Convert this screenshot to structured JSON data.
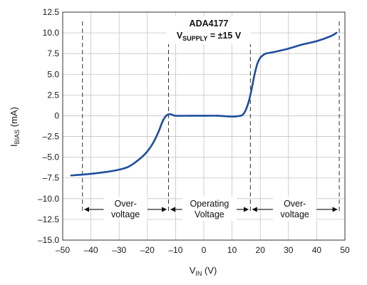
{
  "chart_data": {
    "type": "line",
    "annotation": {
      "part": "ADA4177",
      "supply_prefix": "V",
      "supply_sub": "SUPPLY",
      "supply_suffix": " = ±15 V"
    },
    "xlabel": {
      "main": "V",
      "sub": "IN",
      "suffix": " (V)"
    },
    "ylabel": {
      "main": "I",
      "sub": "BIAS",
      "suffix": " (mA)"
    },
    "xlim": [
      -50,
      50
    ],
    "ylim": [
      -15,
      12.5
    ],
    "x_ticks": [
      -50,
      -40,
      -30,
      -20,
      -10,
      0,
      10,
      20,
      30,
      40,
      50
    ],
    "y_ticks": [
      -15.0,
      -12.5,
      -10.0,
      -7.5,
      -5.0,
      -2.5,
      0,
      2.5,
      5.0,
      7.5,
      10.0,
      12.5
    ],
    "x_tick_labels": [
      "–50",
      "–40",
      "–30",
      "–20",
      "–10",
      "0",
      "10",
      "20",
      "30",
      "40",
      "50"
    ],
    "y_tick_labels": [
      "–15.0",
      "–12.5",
      "–10.0",
      "–7.5",
      "–5.0",
      "–2.5",
      "0",
      "2.5",
      "5.0",
      "7.5",
      "10.0",
      "12.5"
    ],
    "grid": true,
    "series_color": "#1f4e9c",
    "region_boundaries": [
      -43,
      -12.5,
      16.5,
      48
    ],
    "regions": [
      {
        "lines": [
          "Over-",
          "voltage"
        ],
        "from": -43,
        "to": -12.5
      },
      {
        "lines": [
          "Operating",
          "Voltage"
        ],
        "from": -12.5,
        "to": 16.5
      },
      {
        "lines": [
          "Over-",
          "voltage"
        ],
        "from": 16.5,
        "to": 48
      }
    ],
    "region_arrow_y": -11.3,
    "series": [
      {
        "x": [
          -47,
          -43,
          -40,
          -35,
          -30,
          -27,
          -25,
          -22,
          -20,
          -18,
          -16,
          -15,
          -14,
          -13,
          -12,
          -11,
          -10,
          -5,
          0,
          5,
          10,
          13,
          14,
          15,
          16,
          17,
          18,
          19,
          20,
          21,
          22,
          25,
          30,
          35,
          40,
          45,
          47
        ],
        "y": [
          -7.2,
          -7.1,
          -7.0,
          -6.8,
          -6.5,
          -6.2,
          -5.8,
          -5.0,
          -4.3,
          -3.3,
          -1.9,
          -1.0,
          -0.3,
          0.1,
          0.2,
          0.1,
          0.0,
          0.0,
          0.0,
          0.0,
          -0.1,
          0.0,
          0.2,
          0.8,
          1.8,
          3.3,
          5.0,
          6.3,
          7.0,
          7.3,
          7.5,
          7.7,
          8.1,
          8.6,
          9.0,
          9.6,
          10.0
        ]
      }
    ]
  }
}
